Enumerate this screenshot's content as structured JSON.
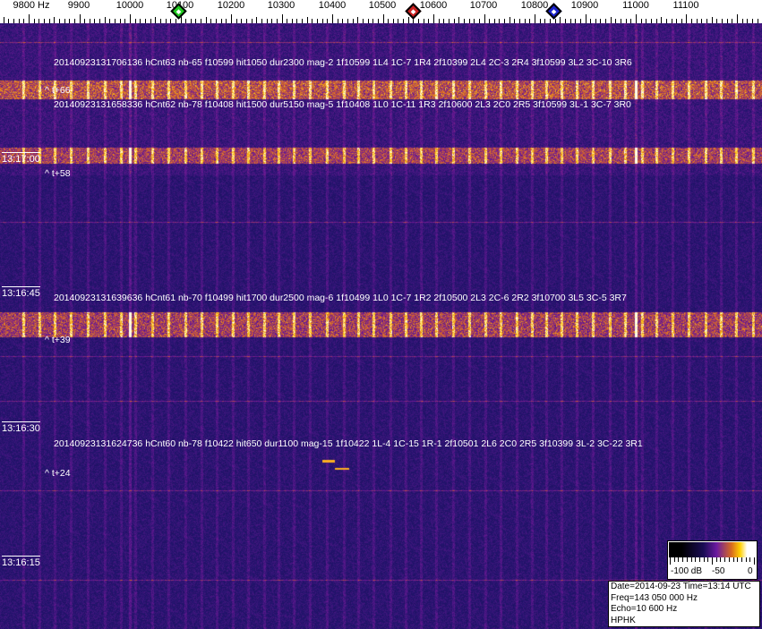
{
  "ruler": {
    "ticks": [
      {
        "hz": 9800,
        "label": "9800 Hz"
      },
      {
        "hz": 9900,
        "label": "9900"
      },
      {
        "hz": 10000,
        "label": "10000"
      },
      {
        "hz": 10100,
        "label": "10100"
      },
      {
        "hz": 10200,
        "label": "10200"
      },
      {
        "hz": 10300,
        "label": "10300"
      },
      {
        "hz": 10400,
        "label": "10400"
      },
      {
        "hz": 10500,
        "label": "10500"
      },
      {
        "hz": 10600,
        "label": "10600"
      },
      {
        "hz": 10700,
        "label": "10700"
      },
      {
        "hz": 10800,
        "label": "10800"
      },
      {
        "hz": 10900,
        "label": "10900"
      },
      {
        "hz": 11000,
        "label": "11000"
      },
      {
        "hz": 11100,
        "label": "11100"
      }
    ],
    "markers": [
      {
        "name": "green-marker",
        "color": "#22cc22"
      },
      {
        "name": "red-marker",
        "color": "#cc2222"
      },
      {
        "name": "blue-marker",
        "color": "#1a22cc"
      }
    ]
  },
  "waterfall": {
    "time_labels": [
      "13:17:00",
      "13:16:45",
      "13:16:30",
      "13:16:15"
    ],
    "annotations": [
      {
        "text": "20140923131706136 hCnt63 nb-65 f10599 hit1050 dur2300 mag-2 1f10599 1L4 1C-7 1R4 2f10399 2L4 2C-3 2R4 3f10599 3L2 3C-10 3R6",
        "offset": "^ t+66"
      },
      {
        "text": "20140923131658336 hCnt62 nb-78 f10408 hit1500 dur5150 mag-5 1f10408 1L0 1C-11 1R3 2f10600 2L3 2C0 2R5 3f10599 3L-1 3C-7 3R0",
        "offset": "^ t+58"
      },
      {
        "text": "20140923131639636 hCnt61 nb-70 f10499 hit1700 dur2500 mag-6 1f10499 1L0 1C-7 1R2 2f10500 2L3 2C-6 2R2 3f10700 3L5 3C-5 3R7",
        "offset": "^ t+39"
      },
      {
        "text": "20140923131624736 hCnt60 nb-78 f10422 hit650 dur1100 mag-15 1f10422 1L-4 1C-15 1R-1 2f10501 2L6 2C0 2R5 3f10399 3L-2 3C-22 3R1",
        "offset": "^ t+24"
      }
    ]
  },
  "legend": {
    "labels": [
      "-100 dB",
      "-50",
      "0"
    ]
  },
  "info": {
    "date_time": "Date=2014-09-23 Time=13:14 UTC",
    "freq": "Freq=143 050 000 Hz",
    "echo": "Echo=10 600 Hz",
    "callsign": "HPHK"
  }
}
